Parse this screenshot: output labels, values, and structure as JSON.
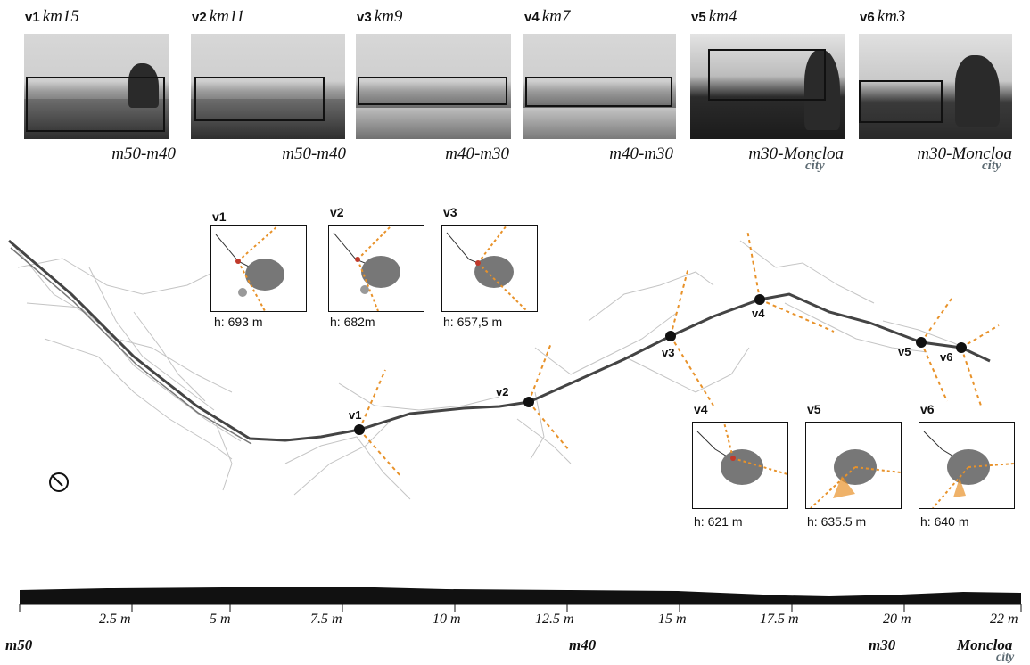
{
  "viewpoints": [
    {
      "id": "v1",
      "km": "km15",
      "segment": "m50-m40",
      "city": ""
    },
    {
      "id": "v2",
      "km": "km11",
      "segment": "m50-m40",
      "city": ""
    },
    {
      "id": "v3",
      "km": "km9",
      "segment": "m40-m30",
      "city": ""
    },
    {
      "id": "v4",
      "km": "km7",
      "segment": "m40-m30",
      "city": ""
    },
    {
      "id": "v5",
      "km": "km4",
      "segment": "m30-Moncloa",
      "city": "city"
    },
    {
      "id": "v6",
      "km": "km3",
      "segment": "m30-Moncloa",
      "city": "city"
    }
  ],
  "insets": [
    {
      "id": "v1",
      "height": "h: 693 m"
    },
    {
      "id": "v2",
      "height": "h: 682m"
    },
    {
      "id": "v3",
      "height": "h: 657,5 m"
    },
    {
      "id": "v4",
      "height": "h: 621 m"
    },
    {
      "id": "v5",
      "height": "h: 635.5 m"
    },
    {
      "id": "v6",
      "height": "h: 640 m"
    }
  ],
  "map_labels": [
    "v1",
    "v2",
    "v3",
    "v4",
    "v5",
    "v6"
  ],
  "profile": {
    "ticks": [
      "2.5 m",
      "5 m",
      "7.5 m",
      "10 m",
      "12.5 m",
      "15 m",
      "17.5 m",
      "20 m",
      "22 m"
    ],
    "places": [
      "m50",
      "m40",
      "m30",
      "Moncloa"
    ],
    "city": "city"
  },
  "colors": {
    "accent": "#e8922a",
    "road": "#444444",
    "city_label": "#5d6b73"
  }
}
